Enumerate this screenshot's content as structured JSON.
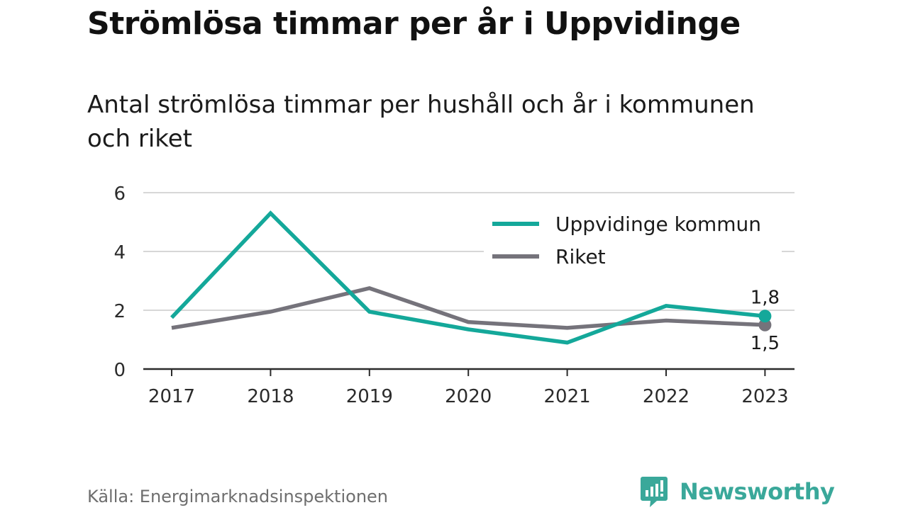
{
  "title": "Strömlösa timmar per år i Uppvidinge",
  "subtitle": "Antal strömlösa timmar per hushåll och år i kommunen och riket",
  "source": "Källa: Energimarknadsinspektionen",
  "brand": {
    "name": "Newsworthy",
    "icon": "newsworthy-logo-icon",
    "color": "#3aa89a"
  },
  "chart_data": {
    "type": "line",
    "x": [
      "2017",
      "2018",
      "2019",
      "2020",
      "2021",
      "2022",
      "2023"
    ],
    "ylim": [
      0,
      6
    ],
    "yticks": [
      "0",
      "2",
      "4",
      "6"
    ],
    "grid": true,
    "legend_position": "top-right",
    "series": [
      {
        "name": "Uppvidinge kommun",
        "color": "#14a89a",
        "values": [
          1.75,
          5.3,
          1.95,
          1.35,
          0.9,
          2.15,
          1.8
        ],
        "end_label": "1,8"
      },
      {
        "name": "Riket",
        "color": "#75737b",
        "values": [
          1.4,
          1.95,
          2.75,
          1.6,
          1.4,
          1.65,
          1.5
        ],
        "end_label": "1,5"
      }
    ]
  }
}
